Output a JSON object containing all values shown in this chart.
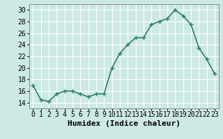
{
  "x": [
    0,
    1,
    2,
    3,
    4,
    5,
    6,
    7,
    8,
    9,
    10,
    11,
    12,
    13,
    14,
    15,
    16,
    17,
    18,
    19,
    20,
    21,
    22,
    23
  ],
  "y": [
    17,
    14.5,
    14.2,
    15.5,
    16,
    16,
    15.5,
    15,
    15.5,
    15.5,
    20,
    22.5,
    24,
    25.2,
    25.2,
    27.5,
    28,
    28.5,
    30,
    29,
    27.5,
    23.5,
    21.5,
    19
  ],
  "line_color": "#2e7d6e",
  "marker": "+",
  "marker_size": 4,
  "bg_color": "#cce9e4",
  "grid_color": "#ffffff",
  "xlabel": "Humidex (Indice chaleur)",
  "ylabel": "",
  "xlim": [
    -0.5,
    23.5
  ],
  "ylim": [
    13,
    31
  ],
  "yticks": [
    14,
    16,
    18,
    20,
    22,
    24,
    26,
    28,
    30
  ],
  "xtick_labels": [
    "0",
    "1",
    "2",
    "3",
    "4",
    "5",
    "6",
    "7",
    "8",
    "9",
    "10",
    "11",
    "12",
    "13",
    "14",
    "15",
    "16",
    "17",
    "18",
    "19",
    "20",
    "21",
    "22",
    "23"
  ],
  "font_size": 7,
  "xlabel_fontsize": 8,
  "line_width": 1.2
}
